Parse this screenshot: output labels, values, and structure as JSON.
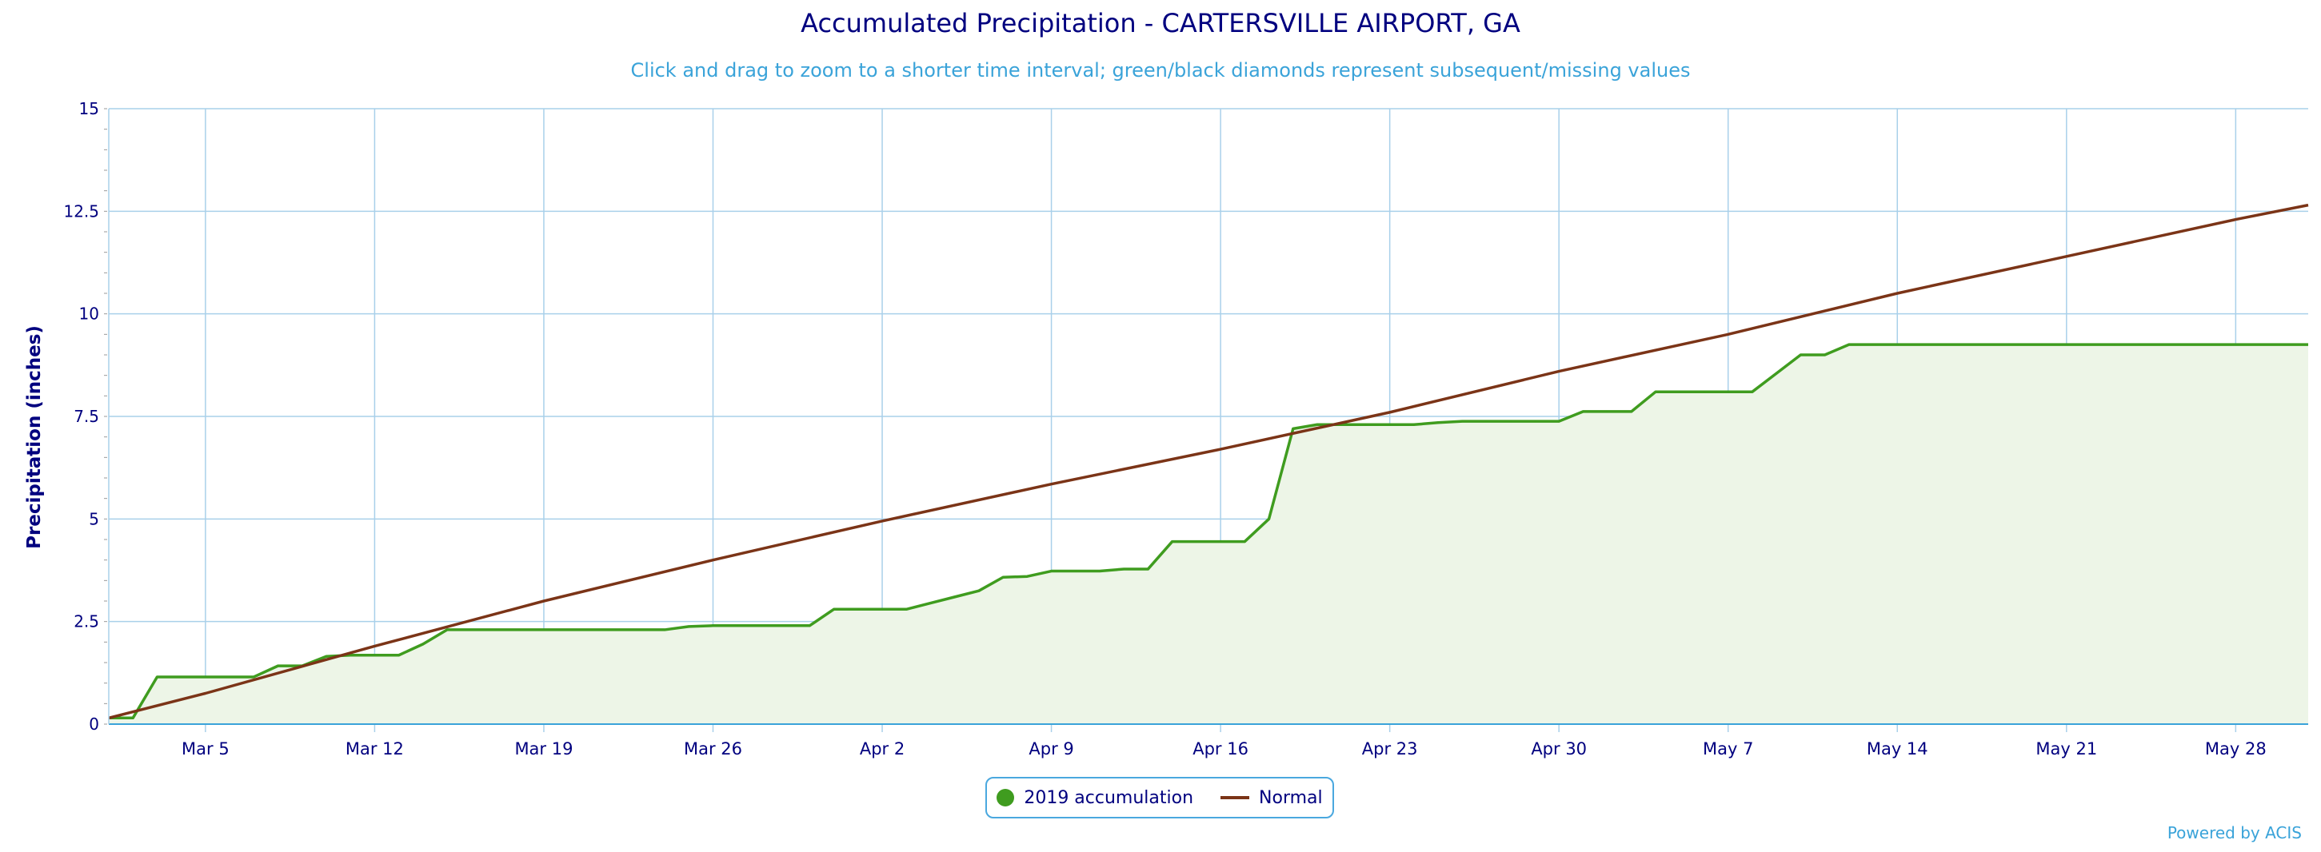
{
  "chart_data": {
    "type": "area",
    "title": "Accumulated Precipitation - CARTERSVILLE AIRPORT, GA",
    "subtitle": "Click and drag to zoom to a shorter time interval; green/black diamonds represent subsequent/missing values",
    "ylabel": "Precipitation (inches)",
    "xlabel": "",
    "ylim": [
      0,
      15
    ],
    "yticks": [
      0,
      2.5,
      5,
      7.5,
      10,
      12.5,
      15
    ],
    "ytick_labels": [
      "0",
      "2.5",
      "5",
      "7.5",
      "10",
      "12.5",
      "15"
    ],
    "xlim": [
      "2019-03-01",
      "2019-05-31"
    ],
    "xticks": [
      "2019-03-05",
      "2019-03-12",
      "2019-03-19",
      "2019-03-26",
      "2019-04-02",
      "2019-04-09",
      "2019-04-16",
      "2019-04-23",
      "2019-04-30",
      "2019-05-07",
      "2019-05-14",
      "2019-05-21",
      "2019-05-28"
    ],
    "xtick_labels": [
      "Mar 5",
      "Mar 12",
      "Mar 19",
      "Mar 26",
      "Apr 2",
      "Apr 9",
      "Apr 16",
      "Apr 23",
      "Apr 30",
      "May 7",
      "May 14",
      "May 21",
      "May 28"
    ],
    "grid": true,
    "legend_position": "bottom-center",
    "series": [
      {
        "name": "2019 accumulation",
        "color": "#3f9c1f",
        "fill": "#edf5e7",
        "x": [
          "2019-03-01",
          "2019-03-02",
          "2019-03-03",
          "2019-03-04",
          "2019-03-05",
          "2019-03-06",
          "2019-03-07",
          "2019-03-08",
          "2019-03-09",
          "2019-03-10",
          "2019-03-11",
          "2019-03-12",
          "2019-03-13",
          "2019-03-14",
          "2019-03-15",
          "2019-03-16",
          "2019-03-17",
          "2019-03-18",
          "2019-03-19",
          "2019-03-20",
          "2019-03-21",
          "2019-03-22",
          "2019-03-23",
          "2019-03-24",
          "2019-03-25",
          "2019-03-26",
          "2019-03-27",
          "2019-03-28",
          "2019-03-29",
          "2019-03-30",
          "2019-03-31",
          "2019-04-01",
          "2019-04-02",
          "2019-04-03",
          "2019-04-04",
          "2019-04-05",
          "2019-04-06",
          "2019-04-07",
          "2019-04-08",
          "2019-04-09",
          "2019-04-10",
          "2019-04-11",
          "2019-04-12",
          "2019-04-13",
          "2019-04-14",
          "2019-04-15",
          "2019-04-16",
          "2019-04-17",
          "2019-04-18",
          "2019-04-19",
          "2019-04-20",
          "2019-04-21",
          "2019-04-22",
          "2019-04-23",
          "2019-04-24",
          "2019-04-25",
          "2019-04-26",
          "2019-04-27",
          "2019-04-28",
          "2019-04-29",
          "2019-04-30",
          "2019-05-01",
          "2019-05-02",
          "2019-05-03",
          "2019-05-04",
          "2019-05-05",
          "2019-05-06",
          "2019-05-07",
          "2019-05-08",
          "2019-05-09",
          "2019-05-10",
          "2019-05-11",
          "2019-05-12",
          "2019-05-13",
          "2019-05-14",
          "2019-05-15",
          "2019-05-16",
          "2019-05-17",
          "2019-05-18",
          "2019-05-19",
          "2019-05-20",
          "2019-05-21",
          "2019-05-22",
          "2019-05-23",
          "2019-05-24",
          "2019-05-25",
          "2019-05-26",
          "2019-05-27",
          "2019-05-28",
          "2019-05-29",
          "2019-05-30",
          "2019-05-31"
        ],
        "values": [
          0.15,
          0.15,
          1.15,
          1.15,
          1.15,
          1.15,
          1.15,
          1.42,
          1.42,
          1.65,
          1.68,
          1.68,
          1.68,
          1.95,
          2.3,
          2.3,
          2.3,
          2.3,
          2.3,
          2.3,
          2.3,
          2.3,
          2.3,
          2.3,
          2.38,
          2.4,
          2.4,
          2.4,
          2.4,
          2.4,
          2.8,
          2.8,
          2.8,
          2.8,
          2.95,
          3.1,
          3.25,
          3.58,
          3.6,
          3.73,
          3.73,
          3.73,
          3.78,
          3.78,
          4.45,
          4.45,
          4.45,
          4.45,
          5.0,
          7.2,
          7.3,
          7.3,
          7.3,
          7.3,
          7.3,
          7.35,
          7.38,
          7.38,
          7.38,
          7.38,
          7.38,
          7.62,
          7.62,
          7.62,
          8.1,
          8.1,
          8.1,
          8.1,
          8.1,
          8.55,
          9.0,
          9.0,
          9.25,
          9.25,
          9.25,
          9.25,
          9.25,
          9.25,
          9.25,
          9.25,
          9.25,
          9.25,
          9.25,
          9.25,
          9.25,
          9.25,
          9.25,
          9.25,
          9.25,
          9.25,
          9.25,
          9.25
        ]
      },
      {
        "name": "Normal",
        "color": "#7b3417",
        "x": [
          "2019-03-01",
          "2019-03-05",
          "2019-03-12",
          "2019-03-19",
          "2019-03-26",
          "2019-04-02",
          "2019-04-09",
          "2019-04-16",
          "2019-04-23",
          "2019-04-30",
          "2019-05-07",
          "2019-05-14",
          "2019-05-21",
          "2019-05-28",
          "2019-05-31"
        ],
        "values": [
          0.15,
          0.75,
          1.9,
          3.0,
          4.0,
          4.95,
          5.85,
          6.7,
          7.6,
          8.6,
          9.5,
          10.5,
          11.4,
          12.3,
          12.65
        ]
      }
    ]
  },
  "legend": {
    "items": [
      "2019 accumulation",
      "Normal"
    ]
  },
  "credits": "Powered by ACIS",
  "colors": {
    "axis_text": "#00007f",
    "subtitle": "#3aa3d9",
    "grid": "#a9d0ea",
    "accent": "#4aa8df"
  }
}
